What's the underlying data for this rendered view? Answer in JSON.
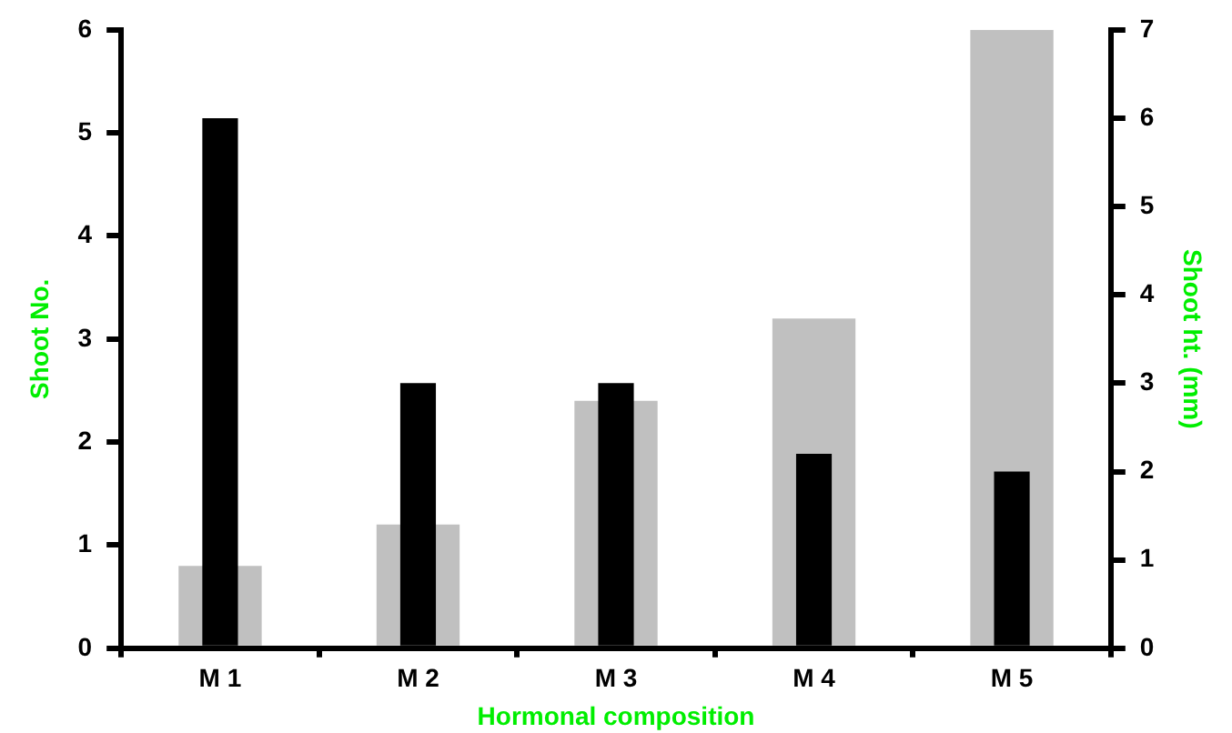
{
  "chart_data": {
    "type": "bar",
    "categories": [
      "M 1",
      "M 2",
      "M 3",
      "M 4",
      "M 5"
    ],
    "series": [
      {
        "color": "#c0c0c0",
        "values": [
          0.8,
          1.2,
          2.4,
          3.2,
          6.0
        ]
      },
      {
        "color": "#000000",
        "values": [
          6.0,
          3.0,
          3.0,
          2.2,
          2.0
        ],
        "axis": "y2"
      }
    ],
    "xlabel": "Hormonal composition",
    "ylabel": "Shoot No.",
    "y2label": "Shoot ht. (mm)",
    "ylim": [
      0,
      6
    ],
    "yticks": [
      0,
      1,
      2,
      3,
      4,
      5,
      6
    ],
    "y2lim": [
      0,
      7
    ],
    "y2ticks": [
      0,
      1,
      2,
      3,
      4,
      5,
      6,
      7
    ],
    "grid": false,
    "legend": false
  }
}
